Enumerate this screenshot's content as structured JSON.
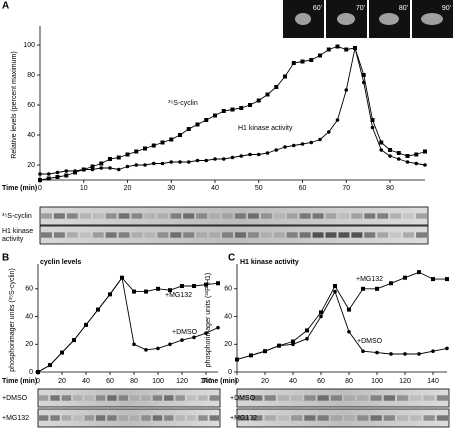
{
  "chart_data": [
    {
      "type": "line",
      "panel": "A",
      "y_label": "Relative levels (percent maximum)",
      "x_label": "Time (min)",
      "x": [
        0,
        2,
        4,
        6,
        8,
        10,
        12,
        14,
        16,
        18,
        20,
        22,
        24,
        26,
        28,
        30,
        32,
        34,
        36,
        38,
        40,
        42,
        44,
        46,
        48,
        50,
        52,
        54,
        56,
        58,
        60,
        62,
        64,
        66,
        68,
        70,
        72,
        74,
        76,
        78,
        80,
        82,
        84,
        86,
        88
      ],
      "series": [
        {
          "name": "³⁵S-cyclin",
          "marker": "square",
          "color": "#000",
          "values": [
            10,
            11,
            12,
            13,
            15,
            17,
            19,
            21,
            24,
            25,
            27,
            29,
            31,
            33,
            35,
            37,
            40,
            44,
            47,
            50,
            53,
            56,
            57,
            58,
            60,
            63,
            67,
            72,
            79,
            88,
            89,
            90,
            93,
            97,
            99,
            97,
            98,
            80,
            50,
            35,
            30,
            28,
            26,
            27,
            29
          ]
        },
        {
          "name": "H1 kinase activity",
          "marker": "circle",
          "color": "#000",
          "values": [
            14,
            14,
            15,
            16,
            16,
            17,
            17,
            18,
            18,
            17,
            19,
            20,
            20,
            21,
            21,
            22,
            22,
            22,
            23,
            23,
            24,
            24,
            25,
            26,
            27,
            27,
            28,
            30,
            32,
            33,
            34,
            35,
            37,
            42,
            50,
            70,
            98,
            75,
            45,
            30,
            26,
            24,
            22,
            21,
            20
          ]
        }
      ],
      "xlim": [
        0,
        88
      ],
      "xticks": [
        0,
        10,
        20,
        30,
        40,
        50,
        60,
        70,
        80
      ],
      "ylim": [
        10,
        110
      ],
      "yticks": [
        20,
        40,
        60,
        80,
        100
      ],
      "gel_labels": [
        "³⁵S-cyclin",
        "H1 kinase",
        "activity"
      ],
      "insets": [
        "60'",
        "70'",
        "80'",
        "90'"
      ]
    },
    {
      "type": "line",
      "panel": "B",
      "title": "cyclin levels",
      "y_label": "phosphorimager units (³⁵S-cyclin)",
      "x_label": "Time (min)",
      "x": [
        0,
        10,
        20,
        30,
        40,
        50,
        60,
        70,
        80,
        90,
        100,
        110,
        120,
        130,
        140,
        150
      ],
      "series": [
        {
          "name": "+MG132",
          "marker": "square",
          "color": "#000",
          "values": [
            0,
            5,
            14,
            23,
            34,
            45,
            56,
            68,
            58,
            58,
            60,
            59,
            62,
            62,
            63,
            64
          ]
        },
        {
          "name": "+DMSO",
          "marker": "circle",
          "color": "#000",
          "values": [
            0,
            5,
            14,
            23,
            34,
            45,
            56,
            68,
            20,
            16,
            17,
            20,
            23,
            25,
            28,
            32
          ]
        }
      ],
      "xlim": [
        0,
        150
      ],
      "xticks": [
        0,
        20,
        40,
        60,
        80,
        100,
        120,
        140
      ],
      "ylim": [
        0,
        75
      ],
      "yticks": [
        0,
        20,
        40,
        60
      ],
      "gel_labels": [
        "+DMSO",
        "+MG132"
      ]
    },
    {
      "type": "line",
      "panel": "C",
      "title": "H1 kinase activity",
      "y_label": "phosphorimager units (³²P-H1)",
      "x_label": "Time (min)",
      "x": [
        0,
        10,
        20,
        30,
        40,
        50,
        60,
        70,
        80,
        90,
        100,
        110,
        120,
        130,
        140,
        150
      ],
      "series": [
        {
          "name": "+MG132",
          "marker": "square",
          "color": "#000",
          "values": [
            9,
            12,
            15,
            19,
            22,
            30,
            43,
            62,
            45,
            60,
            60,
            64,
            68,
            72,
            67,
            67
          ]
        },
        {
          "name": "+DMSO",
          "marker": "circle",
          "color": "#000",
          "values": [
            9,
            12,
            15,
            19,
            20,
            24,
            40,
            58,
            29,
            15,
            14,
            13,
            13,
            13,
            15,
            17
          ]
        }
      ],
      "xlim": [
        0,
        150
      ],
      "xticks": [
        0,
        20,
        40,
        60,
        80,
        100,
        120,
        140
      ],
      "ylim": [
        0,
        75
      ],
      "yticks": [
        0,
        20,
        40,
        60
      ],
      "gel_labels": [
        "+DMSO",
        "+MG132"
      ]
    }
  ]
}
